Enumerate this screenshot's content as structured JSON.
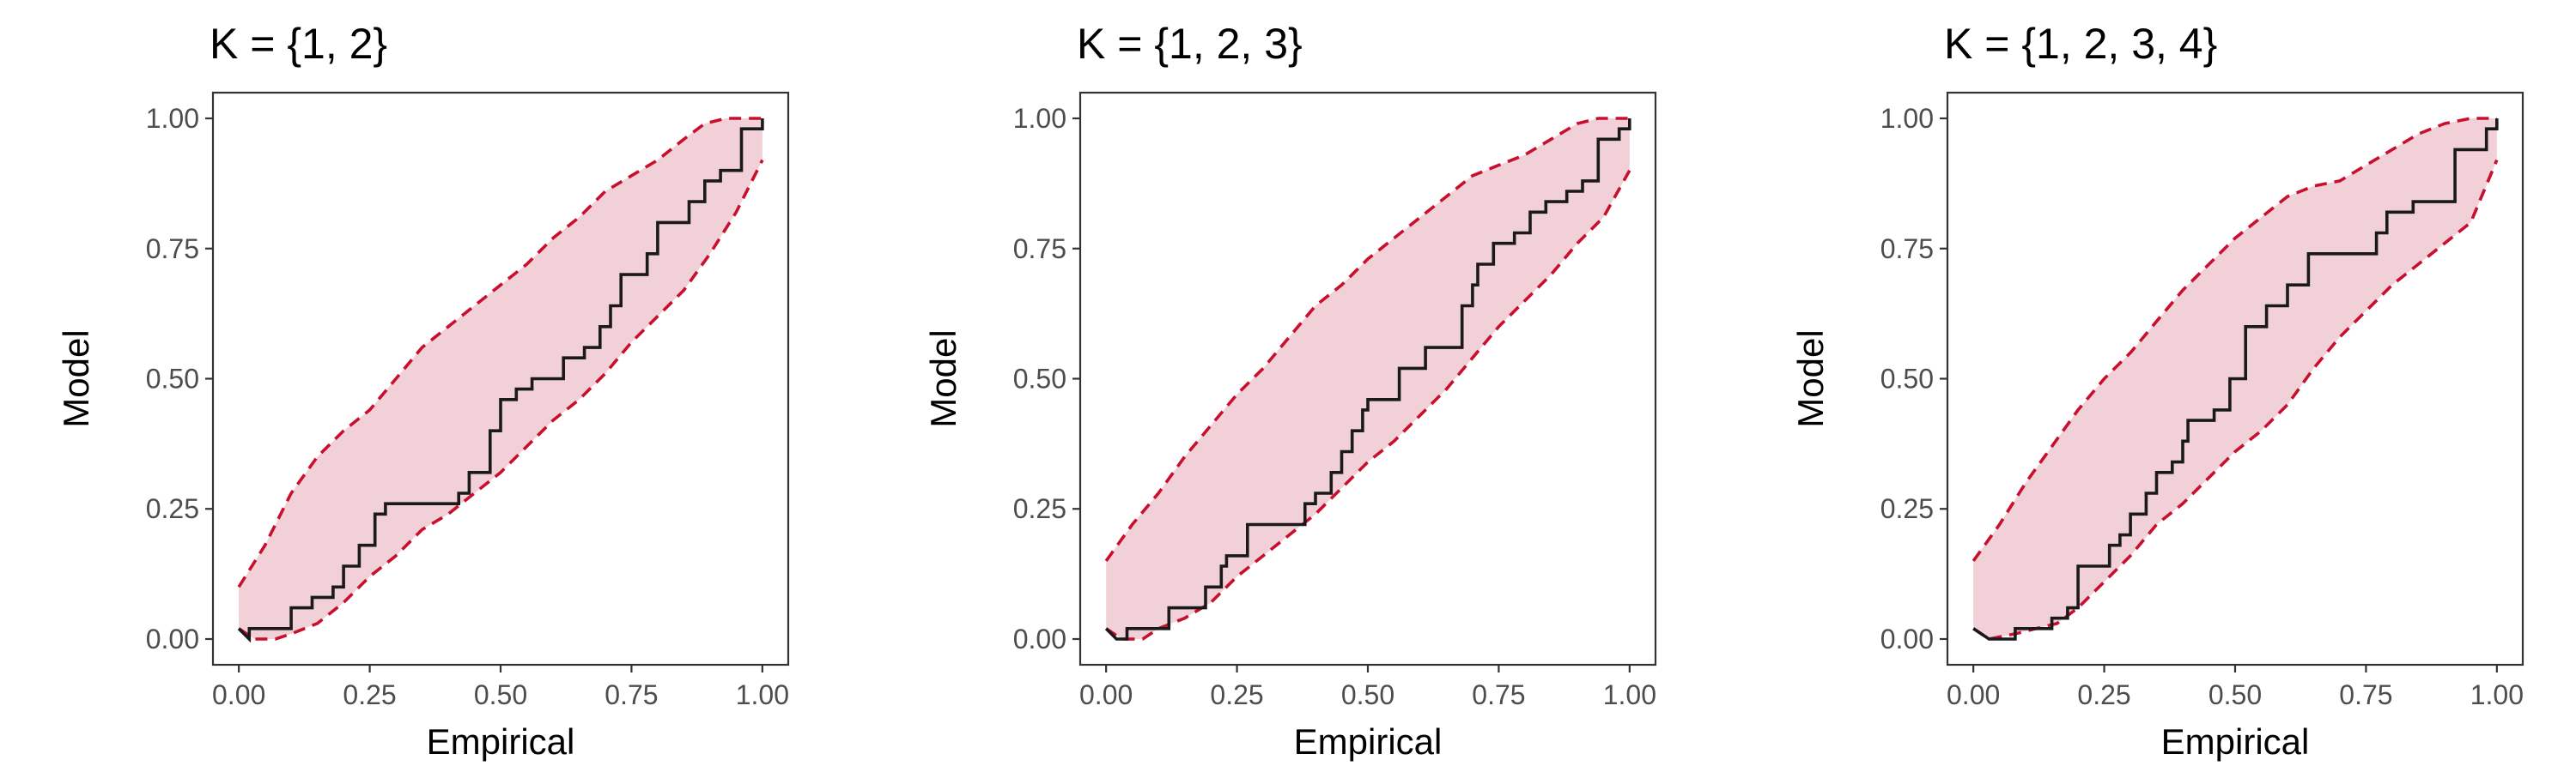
{
  "colors": {
    "band_fill": "#f2d0d7",
    "band_edge": "#c8102e",
    "step_line": "#1a1a1a",
    "tick_text": "#4d4d4d",
    "border": "#333333"
  },
  "chart_data": [
    {
      "type": "line",
      "title": "K = {1, 2}",
      "xlabel": "Empirical",
      "ylabel": "Model",
      "xlim": [
        0,
        1
      ],
      "ylim": [
        0,
        1
      ],
      "xticks": [
        "0.00",
        "0.25",
        "0.50",
        "0.75",
        "1.00"
      ],
      "yticks": [
        "0.00",
        "0.25",
        "0.50",
        "0.75",
        "1.00"
      ],
      "grid": false,
      "band_upper": [
        [
          0,
          0.1
        ],
        [
          0.05,
          0.18
        ],
        [
          0.1,
          0.28
        ],
        [
          0.15,
          0.35
        ],
        [
          0.2,
          0.4
        ],
        [
          0.25,
          0.44
        ],
        [
          0.3,
          0.5
        ],
        [
          0.35,
          0.56
        ],
        [
          0.4,
          0.6
        ],
        [
          0.45,
          0.64
        ],
        [
          0.5,
          0.68
        ],
        [
          0.55,
          0.72
        ],
        [
          0.6,
          0.77
        ],
        [
          0.65,
          0.81
        ],
        [
          0.7,
          0.86
        ],
        [
          0.75,
          0.89
        ],
        [
          0.8,
          0.92
        ],
        [
          0.85,
          0.96
        ],
        [
          0.89,
          0.99
        ],
        [
          0.93,
          1.0
        ],
        [
          0.96,
          1.0
        ],
        [
          1.0,
          1.0
        ]
      ],
      "band_lower": [
        [
          0,
          0.02
        ],
        [
          0.03,
          0.0
        ],
        [
          0.07,
          0.0
        ],
        [
          0.1,
          0.01
        ],
        [
          0.15,
          0.03
        ],
        [
          0.2,
          0.07
        ],
        [
          0.25,
          0.12
        ],
        [
          0.3,
          0.16
        ],
        [
          0.35,
          0.21
        ],
        [
          0.4,
          0.24
        ],
        [
          0.45,
          0.28
        ],
        [
          0.5,
          0.32
        ],
        [
          0.55,
          0.37
        ],
        [
          0.6,
          0.42
        ],
        [
          0.65,
          0.46
        ],
        [
          0.7,
          0.51
        ],
        [
          0.75,
          0.57
        ],
        [
          0.8,
          0.62
        ],
        [
          0.85,
          0.67
        ],
        [
          0.9,
          0.74
        ],
        [
          0.95,
          0.82
        ],
        [
          1.0,
          0.92
        ]
      ],
      "step": [
        [
          0,
          0.02
        ],
        [
          0.02,
          0.0
        ],
        [
          0.02,
          0.02
        ],
        [
          0.1,
          0.02
        ],
        [
          0.1,
          0.06
        ],
        [
          0.14,
          0.06
        ],
        [
          0.14,
          0.08
        ],
        [
          0.18,
          0.08
        ],
        [
          0.18,
          0.1
        ],
        [
          0.2,
          0.1
        ],
        [
          0.2,
          0.14
        ],
        [
          0.23,
          0.14
        ],
        [
          0.23,
          0.18
        ],
        [
          0.26,
          0.18
        ],
        [
          0.26,
          0.24
        ],
        [
          0.28,
          0.24
        ],
        [
          0.28,
          0.26
        ],
        [
          0.42,
          0.26
        ],
        [
          0.42,
          0.28
        ],
        [
          0.44,
          0.28
        ],
        [
          0.44,
          0.32
        ],
        [
          0.48,
          0.32
        ],
        [
          0.48,
          0.4
        ],
        [
          0.5,
          0.4
        ],
        [
          0.5,
          0.46
        ],
        [
          0.53,
          0.46
        ],
        [
          0.53,
          0.48
        ],
        [
          0.56,
          0.48
        ],
        [
          0.56,
          0.5
        ],
        [
          0.62,
          0.5
        ],
        [
          0.62,
          0.54
        ],
        [
          0.66,
          0.54
        ],
        [
          0.66,
          0.56
        ],
        [
          0.69,
          0.56
        ],
        [
          0.69,
          0.6
        ],
        [
          0.71,
          0.6
        ],
        [
          0.71,
          0.64
        ],
        [
          0.73,
          0.64
        ],
        [
          0.73,
          0.7
        ],
        [
          0.78,
          0.7
        ],
        [
          0.78,
          0.74
        ],
        [
          0.8,
          0.74
        ],
        [
          0.8,
          0.8
        ],
        [
          0.86,
          0.8
        ],
        [
          0.86,
          0.84
        ],
        [
          0.89,
          0.84
        ],
        [
          0.89,
          0.88
        ],
        [
          0.92,
          0.88
        ],
        [
          0.92,
          0.9
        ],
        [
          0.96,
          0.9
        ],
        [
          0.96,
          0.98
        ],
        [
          1.0,
          0.98
        ],
        [
          1.0,
          1.0
        ]
      ]
    },
    {
      "type": "line",
      "title": "K = {1, 2, 3}",
      "xlabel": "Empirical",
      "ylabel": "Model",
      "xlim": [
        0,
        1
      ],
      "ylim": [
        0,
        1
      ],
      "xticks": [
        "0.00",
        "0.25",
        "0.50",
        "0.75",
        "1.00"
      ],
      "yticks": [
        "0.00",
        "0.25",
        "0.50",
        "0.75",
        "1.00"
      ],
      "grid": false,
      "band_upper": [
        [
          0,
          0.15
        ],
        [
          0.05,
          0.22
        ],
        [
          0.1,
          0.28
        ],
        [
          0.15,
          0.35
        ],
        [
          0.2,
          0.41
        ],
        [
          0.25,
          0.47
        ],
        [
          0.3,
          0.52
        ],
        [
          0.35,
          0.58
        ],
        [
          0.4,
          0.64
        ],
        [
          0.45,
          0.68
        ],
        [
          0.5,
          0.73
        ],
        [
          0.55,
          0.77
        ],
        [
          0.6,
          0.81
        ],
        [
          0.65,
          0.85
        ],
        [
          0.7,
          0.89
        ],
        [
          0.75,
          0.91
        ],
        [
          0.8,
          0.93
        ],
        [
          0.85,
          0.96
        ],
        [
          0.9,
          0.99
        ],
        [
          0.94,
          1.0
        ],
        [
          1.0,
          1.0
        ]
      ],
      "band_lower": [
        [
          0,
          0.02
        ],
        [
          0.03,
          0.0
        ],
        [
          0.07,
          0.0
        ],
        [
          0.1,
          0.02
        ],
        [
          0.15,
          0.04
        ],
        [
          0.2,
          0.07
        ],
        [
          0.25,
          0.12
        ],
        [
          0.3,
          0.16
        ],
        [
          0.35,
          0.2
        ],
        [
          0.4,
          0.24
        ],
        [
          0.45,
          0.29
        ],
        [
          0.5,
          0.34
        ],
        [
          0.55,
          0.38
        ],
        [
          0.6,
          0.43
        ],
        [
          0.65,
          0.48
        ],
        [
          0.7,
          0.54
        ],
        [
          0.75,
          0.6
        ],
        [
          0.8,
          0.65
        ],
        [
          0.85,
          0.7
        ],
        [
          0.9,
          0.76
        ],
        [
          0.95,
          0.81
        ],
        [
          1.0,
          0.9
        ]
      ],
      "step": [
        [
          0,
          0.02
        ],
        [
          0.02,
          0.0
        ],
        [
          0.04,
          0.0
        ],
        [
          0.04,
          0.02
        ],
        [
          0.12,
          0.02
        ],
        [
          0.12,
          0.06
        ],
        [
          0.19,
          0.06
        ],
        [
          0.19,
          0.1
        ],
        [
          0.22,
          0.1
        ],
        [
          0.22,
          0.14
        ],
        [
          0.23,
          0.14
        ],
        [
          0.23,
          0.16
        ],
        [
          0.27,
          0.16
        ],
        [
          0.27,
          0.22
        ],
        [
          0.38,
          0.22
        ],
        [
          0.38,
          0.26
        ],
        [
          0.4,
          0.26
        ],
        [
          0.4,
          0.28
        ],
        [
          0.43,
          0.28
        ],
        [
          0.43,
          0.32
        ],
        [
          0.45,
          0.32
        ],
        [
          0.45,
          0.36
        ],
        [
          0.47,
          0.36
        ],
        [
          0.47,
          0.4
        ],
        [
          0.49,
          0.4
        ],
        [
          0.49,
          0.44
        ],
        [
          0.5,
          0.44
        ],
        [
          0.5,
          0.46
        ],
        [
          0.56,
          0.46
        ],
        [
          0.56,
          0.52
        ],
        [
          0.61,
          0.52
        ],
        [
          0.61,
          0.56
        ],
        [
          0.68,
          0.56
        ],
        [
          0.68,
          0.64
        ],
        [
          0.7,
          0.64
        ],
        [
          0.7,
          0.68
        ],
        [
          0.71,
          0.68
        ],
        [
          0.71,
          0.72
        ],
        [
          0.74,
          0.72
        ],
        [
          0.74,
          0.76
        ],
        [
          0.78,
          0.76
        ],
        [
          0.78,
          0.78
        ],
        [
          0.81,
          0.78
        ],
        [
          0.81,
          0.82
        ],
        [
          0.84,
          0.82
        ],
        [
          0.84,
          0.84
        ],
        [
          0.88,
          0.84
        ],
        [
          0.88,
          0.86
        ],
        [
          0.91,
          0.86
        ],
        [
          0.91,
          0.88
        ],
        [
          0.94,
          0.88
        ],
        [
          0.94,
          0.96
        ],
        [
          0.98,
          0.96
        ],
        [
          0.98,
          0.98
        ],
        [
          1.0,
          0.98
        ],
        [
          1.0,
          1.0
        ]
      ]
    },
    {
      "type": "line",
      "title": "K = {1, 2, 3, 4}",
      "xlabel": "Empirical",
      "ylabel": "Model",
      "xlim": [
        0,
        1
      ],
      "ylim": [
        0,
        1
      ],
      "xticks": [
        "0.00",
        "0.25",
        "0.50",
        "0.75",
        "1.00"
      ],
      "yticks": [
        "0.00",
        "0.25",
        "0.50",
        "0.75",
        "1.00"
      ],
      "grid": false,
      "band_upper": [
        [
          0,
          0.15
        ],
        [
          0.05,
          0.22
        ],
        [
          0.1,
          0.3
        ],
        [
          0.15,
          0.37
        ],
        [
          0.2,
          0.44
        ],
        [
          0.25,
          0.5
        ],
        [
          0.3,
          0.55
        ],
        [
          0.35,
          0.61
        ],
        [
          0.4,
          0.67
        ],
        [
          0.45,
          0.72
        ],
        [
          0.5,
          0.77
        ],
        [
          0.55,
          0.81
        ],
        [
          0.6,
          0.85
        ],
        [
          0.65,
          0.87
        ],
        [
          0.7,
          0.88
        ],
        [
          0.75,
          0.91
        ],
        [
          0.8,
          0.94
        ],
        [
          0.85,
          0.97
        ],
        [
          0.9,
          0.99
        ],
        [
          0.95,
          1.0
        ],
        [
          1.0,
          1.0
        ]
      ],
      "band_lower": [
        [
          0,
          0.02
        ],
        [
          0.03,
          0.0
        ],
        [
          0.08,
          0.01
        ],
        [
          0.12,
          0.02
        ],
        [
          0.16,
          0.03
        ],
        [
          0.2,
          0.06
        ],
        [
          0.25,
          0.11
        ],
        [
          0.3,
          0.16
        ],
        [
          0.35,
          0.22
        ],
        [
          0.4,
          0.26
        ],
        [
          0.45,
          0.31
        ],
        [
          0.5,
          0.36
        ],
        [
          0.55,
          0.4
        ],
        [
          0.6,
          0.45
        ],
        [
          0.65,
          0.52
        ],
        [
          0.7,
          0.58
        ],
        [
          0.75,
          0.63
        ],
        [
          0.8,
          0.68
        ],
        [
          0.85,
          0.72
        ],
        [
          0.9,
          0.76
        ],
        [
          0.95,
          0.8
        ],
        [
          1.0,
          0.92
        ]
      ],
      "step": [
        [
          0,
          0.02
        ],
        [
          0.03,
          0.0
        ],
        [
          0.08,
          0.0
        ],
        [
          0.08,
          0.02
        ],
        [
          0.15,
          0.02
        ],
        [
          0.15,
          0.04
        ],
        [
          0.18,
          0.04
        ],
        [
          0.18,
          0.06
        ],
        [
          0.2,
          0.06
        ],
        [
          0.2,
          0.14
        ],
        [
          0.26,
          0.14
        ],
        [
          0.26,
          0.18
        ],
        [
          0.28,
          0.18
        ],
        [
          0.28,
          0.2
        ],
        [
          0.3,
          0.2
        ],
        [
          0.3,
          0.24
        ],
        [
          0.33,
          0.24
        ],
        [
          0.33,
          0.28
        ],
        [
          0.35,
          0.28
        ],
        [
          0.35,
          0.32
        ],
        [
          0.38,
          0.32
        ],
        [
          0.38,
          0.34
        ],
        [
          0.4,
          0.34
        ],
        [
          0.4,
          0.38
        ],
        [
          0.41,
          0.38
        ],
        [
          0.41,
          0.42
        ],
        [
          0.46,
          0.42
        ],
        [
          0.46,
          0.44
        ],
        [
          0.49,
          0.44
        ],
        [
          0.49,
          0.5
        ],
        [
          0.52,
          0.5
        ],
        [
          0.52,
          0.6
        ],
        [
          0.56,
          0.6
        ],
        [
          0.56,
          0.64
        ],
        [
          0.6,
          0.64
        ],
        [
          0.6,
          0.68
        ],
        [
          0.64,
          0.68
        ],
        [
          0.64,
          0.74
        ],
        [
          0.77,
          0.74
        ],
        [
          0.77,
          0.78
        ],
        [
          0.79,
          0.78
        ],
        [
          0.79,
          0.82
        ],
        [
          0.84,
          0.82
        ],
        [
          0.84,
          0.84
        ],
        [
          0.92,
          0.84
        ],
        [
          0.92,
          0.94
        ],
        [
          0.98,
          0.94
        ],
        [
          0.98,
          0.98
        ],
        [
          1.0,
          0.98
        ],
        [
          1.0,
          1.0
        ]
      ]
    }
  ]
}
